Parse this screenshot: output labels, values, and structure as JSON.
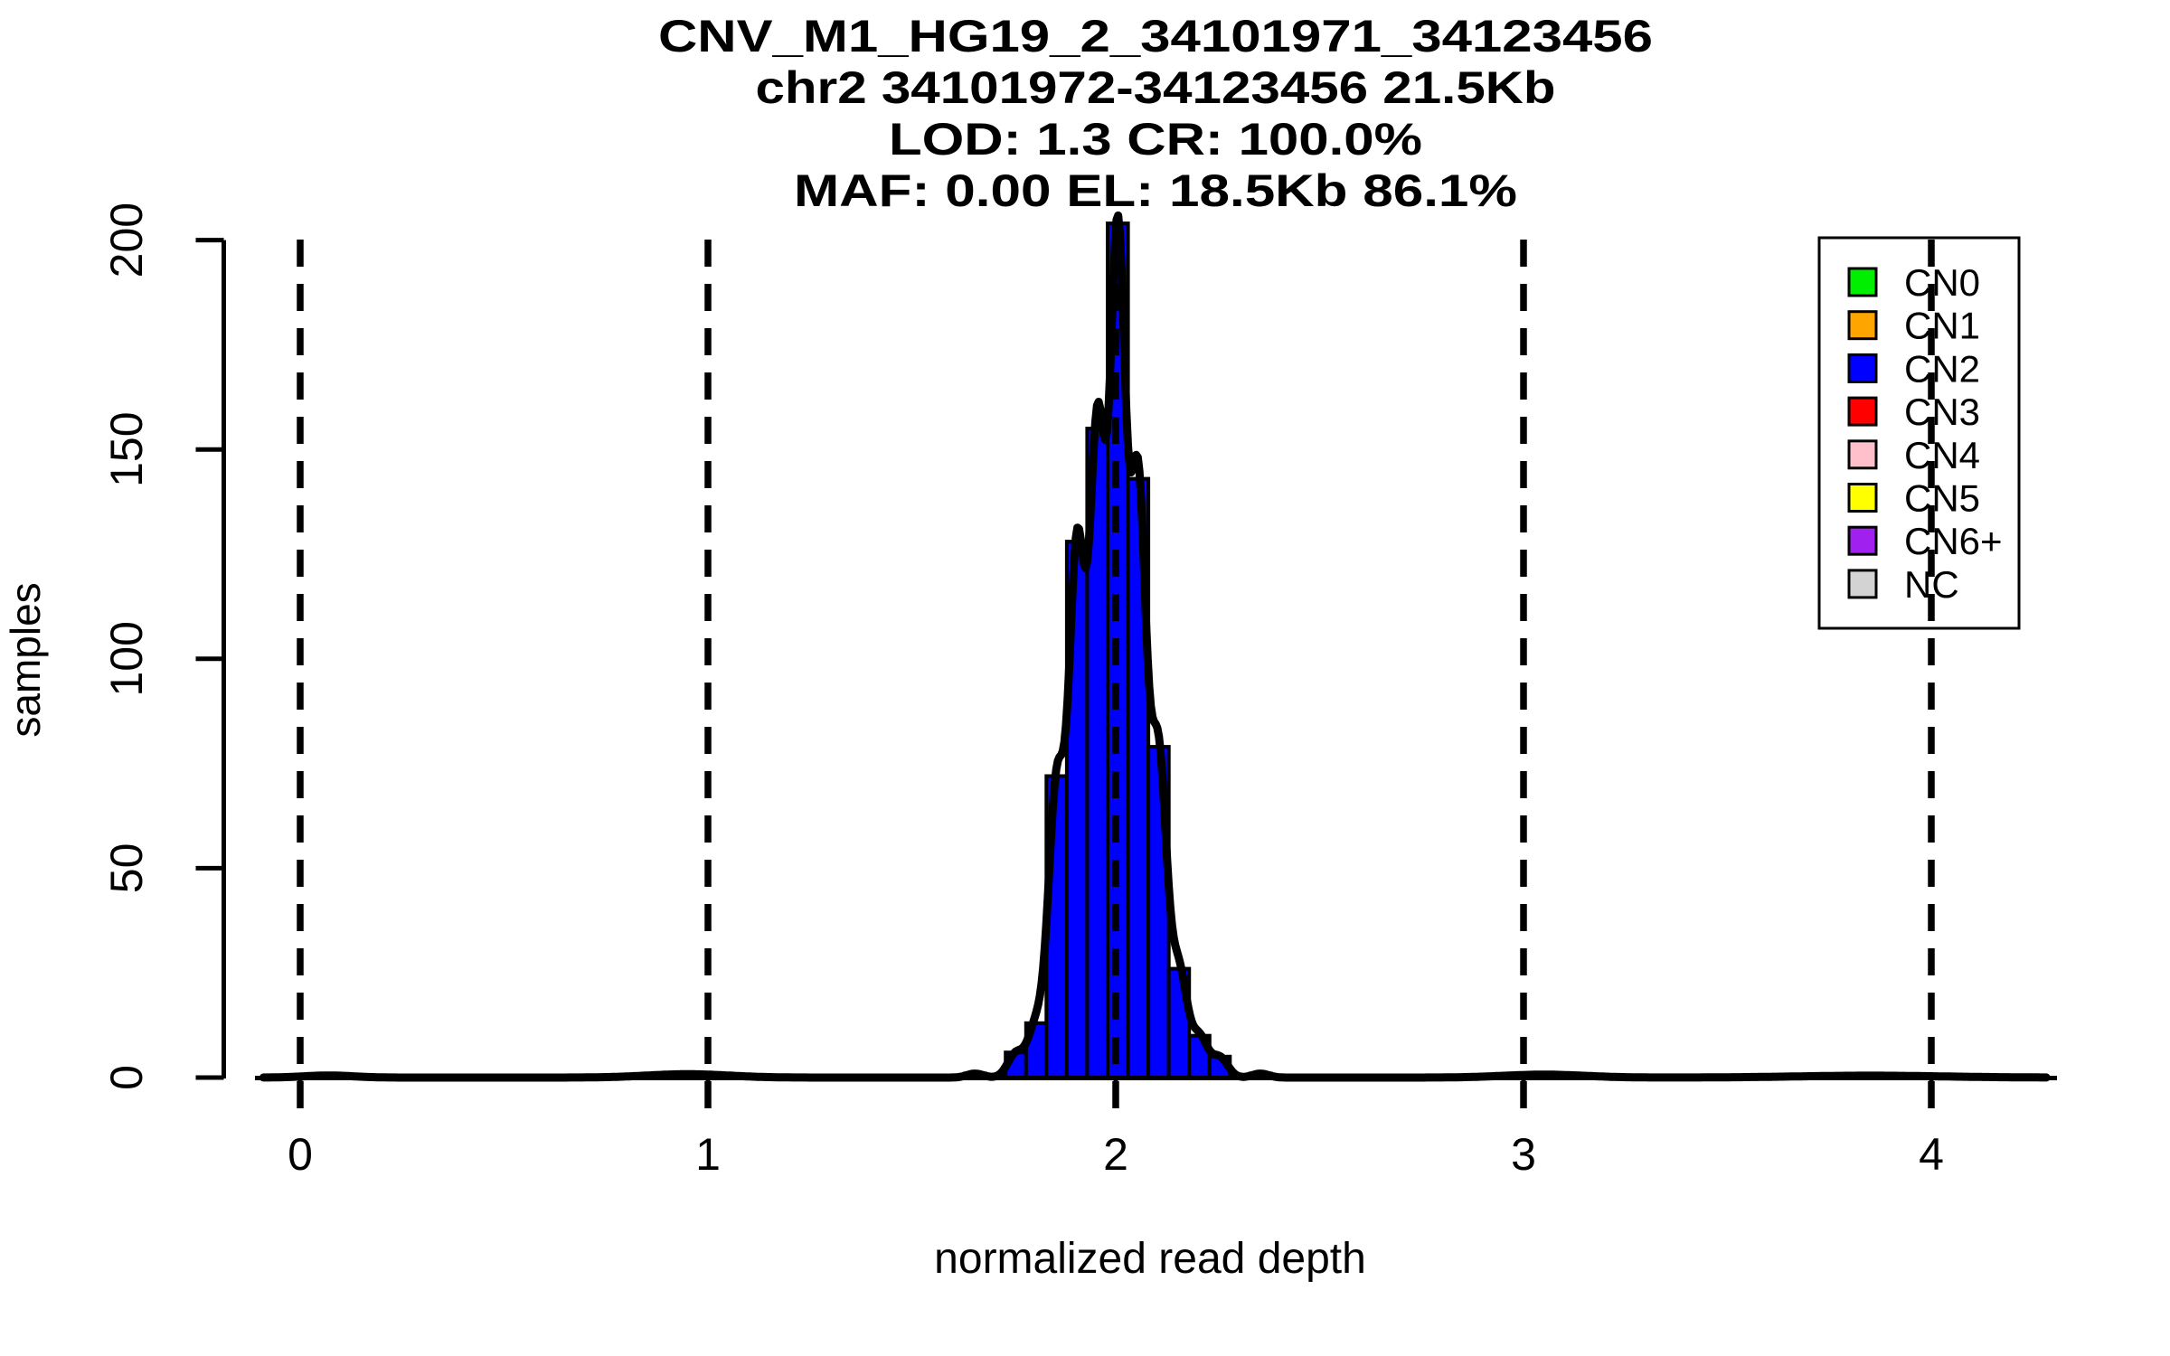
{
  "chart_data": {
    "type": "bar",
    "subtype": "histogram",
    "title": "CNV_M1_HG19_2_34101971_34123456",
    "title_lines": [
      "CNV_M1_HG19_2_34101971_34123456",
      "chr2 34101972-34123456 21.5Kb",
      "LOD: 1.3 CR: 100.0%",
      "MAF: 0.00 EL: 18.5Kb 86.1%"
    ],
    "xlabel": "normalized read depth",
    "ylabel": "samples",
    "x_ticks": [
      0,
      1,
      2,
      3,
      4
    ],
    "y_ticks": [
      0,
      50,
      100,
      150,
      200
    ],
    "xlim": [
      -0.11,
      4.3
    ],
    "ylim": [
      0,
      204
    ],
    "grid": "off",
    "background_color": "#ffffff",
    "bin_start": 1.63,
    "bin_width": 0.05,
    "bin_counts": [
      1,
      0,
      6,
      13,
      72,
      128,
      155,
      204,
      143,
      79,
      26,
      10,
      5,
      0,
      1
    ],
    "bar_color": "#0000FF",
    "bar_edge_color": "#000000",
    "vertical_dashed_lines_x": [
      0,
      1,
      2,
      3,
      4
    ],
    "dashed_line_color": "#000000",
    "density_curve": {
      "color": "#000000",
      "smoothing_sigma": 0.02,
      "peak_value": 206,
      "x_range": [
        -0.09,
        4.285
      ],
      "minor_bumps": [
        {
          "x": 0.07,
          "amplitude": 0.5,
          "sigma": 0.06
        },
        {
          "x": 0.95,
          "amplitude": 0.8,
          "sigma": 0.1
        },
        {
          "x": 3.05,
          "amplitude": 0.7,
          "sigma": 0.1
        },
        {
          "x": 3.85,
          "amplitude": 0.45,
          "sigma": 0.18
        }
      ]
    },
    "legend": {
      "position": "top-right",
      "transparent_background": true,
      "entries": [
        {
          "label": "CN0",
          "color": "#00EE00"
        },
        {
          "label": "CN1",
          "color": "#FFA500"
        },
        {
          "label": "CN2",
          "color": "#0000FF"
        },
        {
          "label": "CN3",
          "color": "#FF0000"
        },
        {
          "label": "CN4",
          "color": "#FFC0CB"
        },
        {
          "label": "CN5",
          "color": "#FFFF00"
        },
        {
          "label": "CN6+",
          "color": "#A020F0"
        },
        {
          "label": "NC",
          "color": "#D3D3D3"
        }
      ]
    }
  }
}
